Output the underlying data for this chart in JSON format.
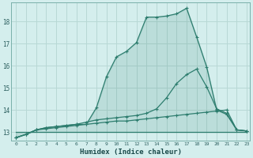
{
  "xlabel": "Humidex (Indice chaleur)",
  "background_color": "#d4eeed",
  "grid_color": "#b8d8d5",
  "line_color": "#2d7d6e",
  "x_min": 0,
  "x_max": 23,
  "y_min": 12.6,
  "y_max": 18.85,
  "yticks": [
    13,
    14,
    15,
    16,
    17,
    18
  ],
  "line1_x": [
    0,
    1,
    2,
    3,
    4,
    5,
    6,
    7,
    8,
    9,
    10,
    11,
    12,
    13,
    14,
    15,
    16,
    17,
    18,
    19,
    20,
    21,
    22,
    23
  ],
  "line1_y": [
    12.75,
    12.9,
    13.1,
    13.2,
    13.25,
    13.3,
    13.35,
    13.35,
    14.1,
    15.5,
    16.4,
    16.65,
    17.05,
    18.2,
    18.2,
    18.25,
    18.35,
    18.6,
    17.3,
    15.95,
    14.0,
    13.8,
    13.1,
    13.05
  ],
  "line2_x": [
    0,
    1,
    2,
    3,
    4,
    5,
    6,
    7,
    8,
    9,
    10,
    11,
    12,
    13,
    14,
    15,
    16,
    17,
    18,
    19,
    20,
    21,
    22,
    23
  ],
  "line2_y": [
    12.75,
    12.9,
    13.1,
    13.2,
    13.25,
    13.3,
    13.35,
    13.45,
    13.55,
    13.6,
    13.65,
    13.7,
    13.75,
    13.85,
    14.05,
    14.55,
    15.2,
    15.6,
    15.85,
    15.05,
    14.05,
    13.85,
    13.1,
    13.05
  ],
  "line3_x": [
    0,
    1,
    2,
    3,
    4,
    5,
    6,
    7,
    8,
    9,
    10,
    11,
    12,
    13,
    14,
    15,
    16,
    17,
    18,
    19,
    20,
    21,
    22,
    23
  ],
  "line3_y": [
    12.75,
    12.9,
    13.1,
    13.15,
    13.2,
    13.25,
    13.3,
    13.35,
    13.4,
    13.45,
    13.5,
    13.5,
    13.55,
    13.6,
    13.65,
    13.7,
    13.75,
    13.8,
    13.85,
    13.9,
    13.95,
    14.0,
    13.1,
    13.05
  ],
  "line4_x": [
    0,
    1,
    2,
    3,
    4,
    5,
    6,
    7,
    8,
    9,
    10,
    11,
    12,
    13,
    14,
    15,
    16,
    17,
    18,
    19,
    20,
    21,
    22,
    23
  ],
  "line4_y": [
    13.0,
    13.0,
    13.0,
    13.0,
    13.0,
    13.0,
    13.0,
    13.0,
    13.0,
    13.0,
    13.0,
    13.0,
    13.0,
    13.0,
    13.0,
    13.0,
    13.0,
    13.0,
    13.0,
    13.0,
    13.0,
    13.0,
    13.0,
    13.0
  ]
}
